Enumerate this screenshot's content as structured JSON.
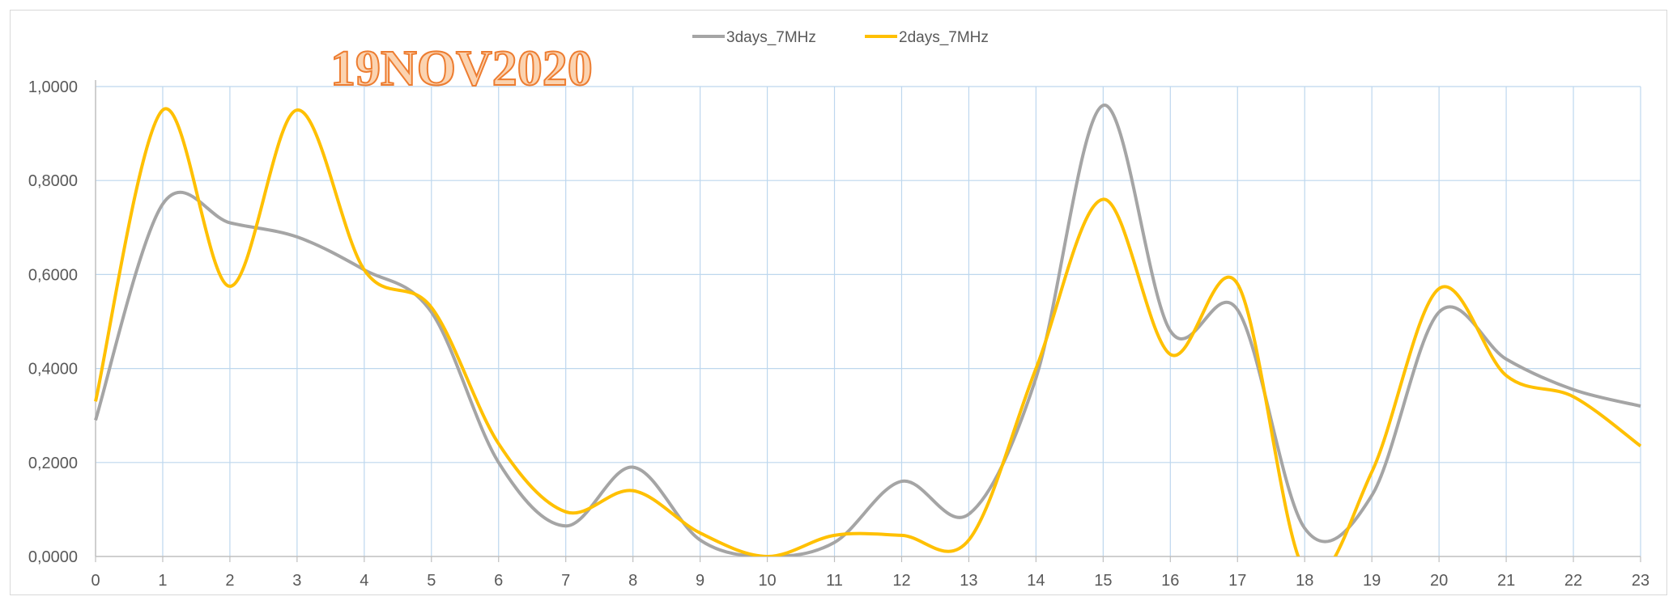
{
  "chart_data": {
    "type": "line",
    "title": "",
    "annotation": "19NOV2020",
    "xlabel": "",
    "ylabel": "",
    "x": [
      0,
      1,
      2,
      3,
      4,
      5,
      6,
      7,
      8,
      9,
      10,
      11,
      12,
      13,
      14,
      15,
      16,
      17,
      18,
      19,
      20,
      21,
      22,
      23
    ],
    "x_ticks": [
      "0",
      "1",
      "2",
      "3",
      "4",
      "5",
      "6",
      "7",
      "8",
      "9",
      "10",
      "11",
      "12",
      "13",
      "14",
      "15",
      "16",
      "17",
      "18",
      "19",
      "20",
      "21",
      "22",
      "23"
    ],
    "xlim": [
      0,
      23
    ],
    "ylim": [
      0,
      1
    ],
    "y_ticks": [
      "0,0000",
      "0,2000",
      "0,4000",
      "0,6000",
      "0,8000",
      "1,0000"
    ],
    "grid": true,
    "smooth": true,
    "legend_position": "top",
    "series": [
      {
        "name": "3days_7MHz",
        "color": "#a5a5a5",
        "values": [
          0.29,
          0.75,
          0.71,
          0.68,
          0.61,
          0.52,
          0.2,
          0.065,
          0.19,
          0.035,
          0.0,
          0.03,
          0.16,
          0.09,
          0.38,
          0.96,
          0.48,
          0.525,
          0.06,
          0.13,
          0.52,
          0.42,
          0.355,
          0.32
        ]
      },
      {
        "name": "2days_7MHz",
        "color": "#ffc000",
        "values": [
          0.33,
          0.95,
          0.575,
          0.95,
          0.61,
          0.53,
          0.24,
          0.095,
          0.14,
          0.05,
          0.0,
          0.045,
          0.045,
          0.035,
          0.4,
          0.76,
          0.43,
          0.58,
          -0.03,
          0.18,
          0.57,
          0.385,
          0.34,
          0.235
        ]
      }
    ]
  }
}
